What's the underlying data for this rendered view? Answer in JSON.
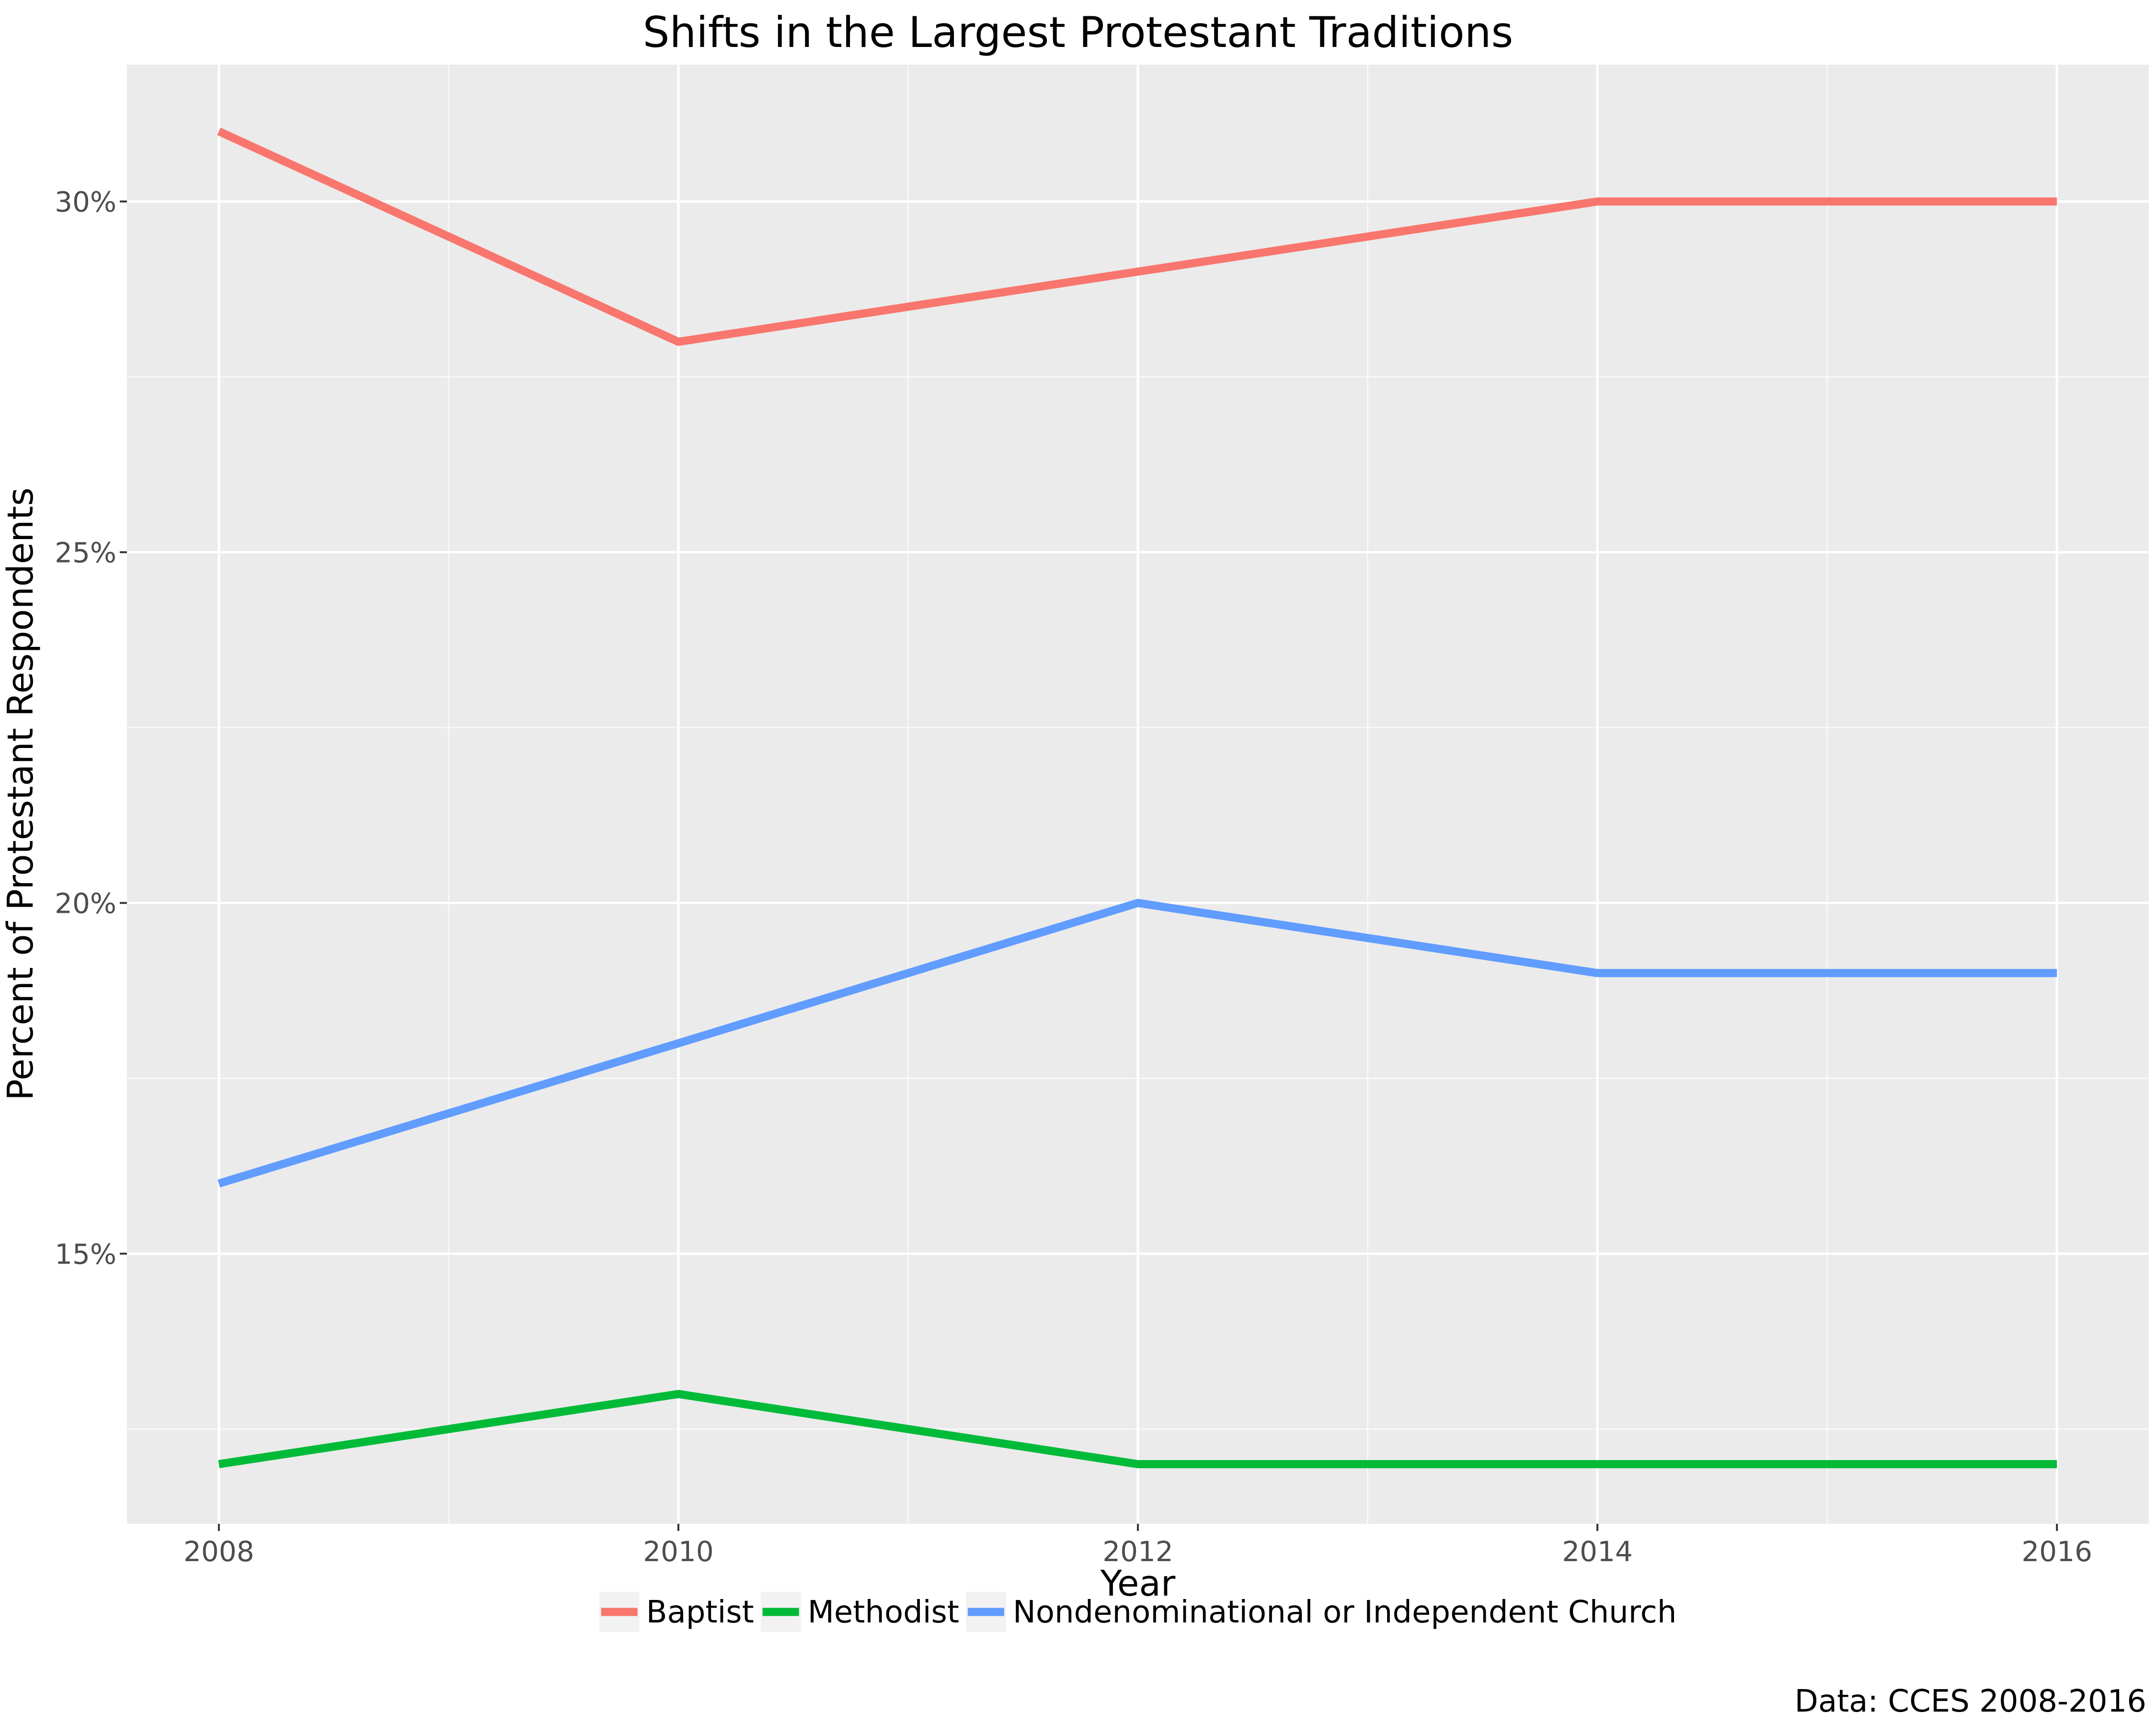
{
  "chart_data": {
    "type": "line",
    "title": "Shifts in the Largest Protestant Traditions",
    "xlabel": "Year",
    "ylabel": "Percent of Protestant Respondents",
    "x": [
      2008,
      2010,
      2012,
      2014,
      2016
    ],
    "x_ticks": [
      2008,
      2010,
      2012,
      2014,
      2016
    ],
    "x_tick_labels": [
      "2008",
      "2010",
      "2012",
      "2014",
      "2016"
    ],
    "xlim": [
      2007.6,
      2016.4
    ],
    "y_ticks": [
      0.15,
      0.2,
      0.25,
      0.3
    ],
    "y_tick_labels": [
      "15%",
      "20%",
      "25%",
      "30%"
    ],
    "ylim": [
      0.1115,
      0.3195
    ],
    "grid": true,
    "legend_position": "bottom",
    "series": [
      {
        "name": "Baptist",
        "color": "#F8766D",
        "values": [
          0.31,
          0.28,
          0.29,
          0.3,
          0.3
        ]
      },
      {
        "name": "Methodist",
        "color": "#00BA38",
        "values": [
          0.12,
          0.13,
          0.12,
          0.12,
          0.12
        ]
      },
      {
        "name": "Nondenominational or Independent Church",
        "color": "#619CFF",
        "values": [
          0.16,
          0.18,
          0.2,
          0.19,
          0.19
        ]
      }
    ],
    "caption": "Data: CCES 2008-2016"
  }
}
